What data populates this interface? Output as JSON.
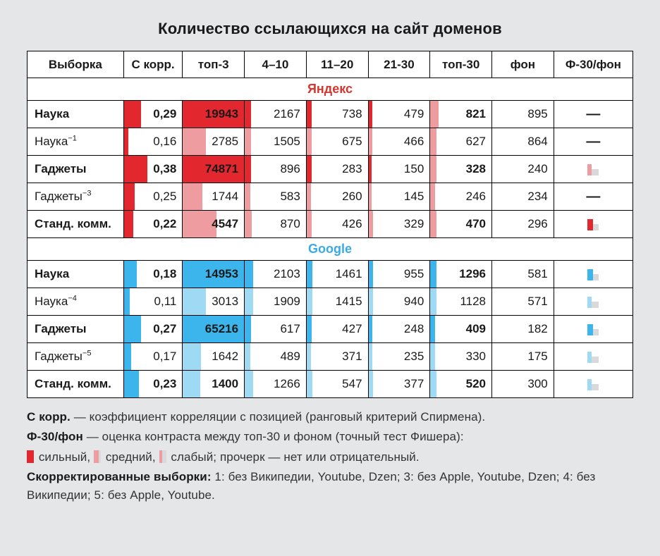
{
  "title": "Количество ссылающихся на сайт доменов",
  "colors": {
    "yandex_strong": "#e2272f",
    "yandex_weak": "#ef9ca0",
    "google_strong": "#3cb5ec",
    "google_weak": "#9fdaf5",
    "mini_back": "#d9d9d9"
  },
  "headers": [
    "Выборка",
    "С корр.",
    "топ-3",
    "4–10",
    "11–20",
    "21-30",
    "топ-30",
    "фон",
    "Ф-30/фон"
  ],
  "sections": [
    {
      "name": "Яндекс",
      "class": "yandex",
      "strong": "#e2272f",
      "weak": "#ef9ca0",
      "rows": [
        {
          "label": "Наука",
          "bold": true,
          "sup": "",
          "cells": [
            {
              "v": "0,29",
              "b": true,
              "s": 30,
              "w": 0
            },
            {
              "v": "19943",
              "b": true,
              "s": 100,
              "w": 0
            },
            {
              "v": "2167",
              "b": false,
              "s": 10,
              "w": 0
            },
            {
              "v": "738",
              "b": false,
              "s": 8,
              "w": 0
            },
            {
              "v": "479",
              "b": false,
              "s": 6,
              "w": 0
            },
            {
              "v": "821",
              "b": true,
              "s": 0,
              "w": 14
            },
            {
              "v": "895",
              "b": false,
              "s": 0,
              "w": 0
            }
          ],
          "last": {
            "type": "dash"
          }
        },
        {
          "label": "Наука",
          "bold": false,
          "sup": "−1",
          "cells": [
            {
              "v": "0,16",
              "b": false,
              "s": 8,
              "w": 0
            },
            {
              "v": "2785",
              "b": false,
              "s": 0,
              "w": 38
            },
            {
              "v": "1505",
              "b": false,
              "s": 0,
              "w": 10
            },
            {
              "v": "675",
              "b": false,
              "s": 0,
              "w": 8
            },
            {
              "v": "466",
              "b": false,
              "s": 0,
              "w": 6
            },
            {
              "v": "627",
              "b": false,
              "s": 0,
              "w": 10
            },
            {
              "v": "864",
              "b": false,
              "s": 0,
              "w": 0
            }
          ],
          "last": {
            "type": "dash"
          }
        },
        {
          "label": "Гаджеты",
          "bold": true,
          "sup": "",
          "cells": [
            {
              "v": "0,38",
              "b": true,
              "s": 40,
              "w": 0
            },
            {
              "v": "74871",
              "b": true,
              "s": 100,
              "w": 0
            },
            {
              "v": "896",
              "b": false,
              "s": 10,
              "w": 0
            },
            {
              "v": "283",
              "b": false,
              "s": 8,
              "w": 0
            },
            {
              "v": "150",
              "b": false,
              "s": 5,
              "w": 0
            },
            {
              "v": "328",
              "b": true,
              "s": 0,
              "w": 10
            },
            {
              "v": "240",
              "b": false,
              "s": 0,
              "w": 0
            }
          ],
          "last": {
            "type": "icon",
            "fill": "#ef9ca0",
            "w": 6
          }
        },
        {
          "label": "Гаджеты",
          "bold": false,
          "sup": "−3",
          "cells": [
            {
              "v": "0,25",
              "b": false,
              "s": 18,
              "w": 0
            },
            {
              "v": "1744",
              "b": false,
              "s": 0,
              "w": 32
            },
            {
              "v": "583",
              "b": false,
              "s": 0,
              "w": 9
            },
            {
              "v": "260",
              "b": false,
              "s": 0,
              "w": 7
            },
            {
              "v": "145",
              "b": false,
              "s": 0,
              "w": 5
            },
            {
              "v": "246",
              "b": false,
              "s": 0,
              "w": 8
            },
            {
              "v": "234",
              "b": false,
              "s": 0,
              "w": 0
            }
          ],
          "last": {
            "type": "dash"
          }
        },
        {
          "label": "Станд. комм.",
          "bold": true,
          "sup": "",
          "cells": [
            {
              "v": "0,22",
              "b": true,
              "s": 16,
              "w": 0
            },
            {
              "v": "4547",
              "b": true,
              "s": 0,
              "w": 55
            },
            {
              "v": "870",
              "b": false,
              "s": 0,
              "w": 12
            },
            {
              "v": "426",
              "b": false,
              "s": 0,
              "w": 8
            },
            {
              "v": "329",
              "b": false,
              "s": 0,
              "w": 7
            },
            {
              "v": "470",
              "b": true,
              "s": 0,
              "w": 10
            },
            {
              "v": "296",
              "b": false,
              "s": 0,
              "w": 0
            }
          ],
          "last": {
            "type": "icon",
            "fill": "#e2272f",
            "w": 8
          }
        }
      ]
    },
    {
      "name": "Google",
      "class": "google",
      "strong": "#3cb5ec",
      "weak": "#9fdaf5",
      "rows": [
        {
          "label": "Наука",
          "bold": true,
          "sup": "",
          "cells": [
            {
              "v": "0,18",
              "b": true,
              "s": 22,
              "w": 0
            },
            {
              "v": "14953",
              "b": true,
              "s": 100,
              "w": 0
            },
            {
              "v": "2103",
              "b": false,
              "s": 14,
              "w": 0
            },
            {
              "v": "1461",
              "b": false,
              "s": 10,
              "w": 0
            },
            {
              "v": "955",
              "b": false,
              "s": 8,
              "w": 0
            },
            {
              "v": "1296",
              "b": true,
              "s": 10,
              "w": 0
            },
            {
              "v": "581",
              "b": false,
              "s": 0,
              "w": 0
            }
          ],
          "last": {
            "type": "icon",
            "fill": "#3cb5ec",
            "w": 8
          }
        },
        {
          "label": "Наука",
          "bold": false,
          "sup": "−4",
          "cells": [
            {
              "v": "0,11",
              "b": false,
              "s": 10,
              "w": 0
            },
            {
              "v": "3013",
              "b": false,
              "s": 0,
              "w": 38
            },
            {
              "v": "1909",
              "b": false,
              "s": 0,
              "w": 14
            },
            {
              "v": "1415",
              "b": false,
              "s": 0,
              "w": 10
            },
            {
              "v": "940",
              "b": false,
              "s": 0,
              "w": 8
            },
            {
              "v": "1128",
              "b": false,
              "s": 0,
              "w": 10
            },
            {
              "v": "571",
              "b": false,
              "s": 0,
              "w": 0
            }
          ],
          "last": {
            "type": "icon",
            "fill": "#9fdaf5",
            "w": 6
          }
        },
        {
          "label": "Гаджеты",
          "bold": true,
          "sup": "",
          "cells": [
            {
              "v": "0,27",
              "b": true,
              "s": 30,
              "w": 0
            },
            {
              "v": "65216",
              "b": true,
              "s": 100,
              "w": 0
            },
            {
              "v": "617",
              "b": false,
              "s": 10,
              "w": 0
            },
            {
              "v": "427",
              "b": false,
              "s": 8,
              "w": 0
            },
            {
              "v": "248",
              "b": false,
              "s": 6,
              "w": 0
            },
            {
              "v": "409",
              "b": true,
              "s": 8,
              "w": 0
            },
            {
              "v": "182",
              "b": false,
              "s": 0,
              "w": 0
            }
          ],
          "last": {
            "type": "icon",
            "fill": "#3cb5ec",
            "w": 8
          }
        },
        {
          "label": "Гаджеты",
          "bold": false,
          "sup": "−5",
          "cells": [
            {
              "v": "0,17",
              "b": false,
              "s": 12,
              "w": 0
            },
            {
              "v": "1642",
              "b": false,
              "s": 0,
              "w": 30
            },
            {
              "v": "489",
              "b": false,
              "s": 0,
              "w": 9
            },
            {
              "v": "371",
              "b": false,
              "s": 0,
              "w": 7
            },
            {
              "v": "235",
              "b": false,
              "s": 0,
              "w": 6
            },
            {
              "v": "330",
              "b": false,
              "s": 0,
              "w": 8
            },
            {
              "v": "175",
              "b": false,
              "s": 0,
              "w": 0
            }
          ],
          "last": {
            "type": "icon",
            "fill": "#9fdaf5",
            "w": 6
          }
        },
        {
          "label": "Станд. комм.",
          "bold": true,
          "sup": "",
          "cells": [
            {
              "v": "0,23",
              "b": true,
              "s": 26,
              "w": 0
            },
            {
              "v": "1400",
              "b": true,
              "s": 0,
              "w": 28
            },
            {
              "v": "1266",
              "b": false,
              "s": 0,
              "w": 14
            },
            {
              "v": "547",
              "b": false,
              "s": 0,
              "w": 9
            },
            {
              "v": "377",
              "b": false,
              "s": 0,
              "w": 7
            },
            {
              "v": "520",
              "b": true,
              "s": 0,
              "w": 10
            },
            {
              "v": "300",
              "b": false,
              "s": 0,
              "w": 0
            }
          ],
          "last": {
            "type": "icon",
            "fill": "#9fdaf5",
            "w": 6
          }
        }
      ]
    }
  ],
  "legend": {
    "l1_b": "С корр.",
    "l1_t": " — коэффициент корреляции с позицией (ранговый критерий Спирмена).",
    "l2_b": "Ф-30/фон",
    "l2_t": " — оценка контраста между топ-30 и фоном (точный тест Фишера):",
    "sw_strong": "сильный,",
    "sw_med": "средний,",
    "sw_weak": "слабый; прочерк — нет или отрицательный.",
    "swatches": [
      {
        "fill": "#e2272f",
        "w": 10
      },
      {
        "fill": "#ef9ca0",
        "w": 7
      },
      {
        "fill": "#ef9ca0",
        "w": 4
      }
    ],
    "l3_b": "Скорректированные выборки:",
    "l3_t": " 1: без Википедии, Youtube, Dzen; 3: без Apple, Youtube, Dzen; 4: без Википедии; 5: без Apple, Youtube."
  }
}
